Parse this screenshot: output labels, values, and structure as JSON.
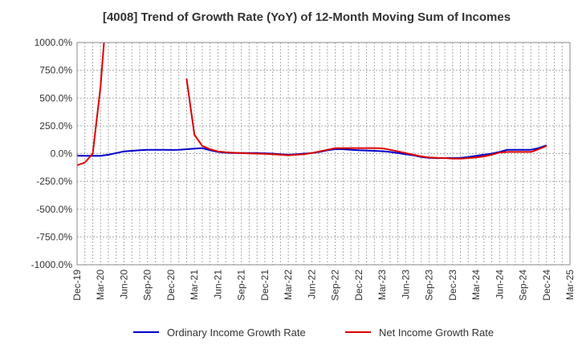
{
  "chart_data": {
    "type": "line",
    "title": "[4008]  Trend of Growth Rate (YoY) of 12-Month Moving Sum of Incomes",
    "xlabel": "",
    "ylabel": "",
    "ylim": [
      -1000,
      1000
    ],
    "y_ticks": [
      "1000.0%",
      "750.0%",
      "500.0%",
      "250.0%",
      "0.0%",
      "-250.0%",
      "-500.0%",
      "-750.0%",
      "-1000.0%"
    ],
    "y_tick_values": [
      1000,
      750,
      500,
      250,
      0,
      -250,
      -500,
      -750,
      -1000
    ],
    "x_tick_labels": [
      "Dec-19",
      "Mar-20",
      "Jun-20",
      "Sep-20",
      "Dec-20",
      "Mar-21",
      "Jun-21",
      "Sep-21",
      "Dec-21",
      "Mar-22",
      "Jun-22",
      "Sep-22",
      "Dec-22",
      "Mar-23",
      "Jun-23",
      "Sep-23",
      "Dec-23",
      "Mar-24",
      "Jun-24",
      "Sep-24",
      "Dec-24",
      "Mar-25"
    ],
    "x": [
      "Dec-19",
      "Jan-20",
      "Feb-20",
      "Mar-20",
      "Apr-20",
      "May-20",
      "Jun-20",
      "Jul-20",
      "Aug-20",
      "Sep-20",
      "Oct-20",
      "Nov-20",
      "Dec-20",
      "Jan-21",
      "Feb-21",
      "Mar-21",
      "Apr-21",
      "May-21",
      "Jun-21",
      "Jul-21",
      "Aug-21",
      "Sep-21",
      "Oct-21",
      "Nov-21",
      "Dec-21",
      "Jan-22",
      "Feb-22",
      "Mar-22",
      "Apr-22",
      "May-22",
      "Jun-22",
      "Jul-22",
      "Aug-22",
      "Sep-22",
      "Oct-22",
      "Nov-22",
      "Dec-22",
      "Jan-23",
      "Feb-23",
      "Mar-23",
      "Apr-23",
      "May-23",
      "Jun-23",
      "Jul-23",
      "Aug-23",
      "Sep-23",
      "Oct-23",
      "Nov-23",
      "Dec-23",
      "Jan-24",
      "Feb-24",
      "Mar-24",
      "Apr-24",
      "May-24",
      "Jun-24",
      "Jul-24",
      "Aug-24",
      "Sep-24",
      "Oct-24",
      "Nov-24",
      "Dec-24"
    ],
    "series": [
      {
        "name": "Ordinary Income Growth Rate",
        "color": "#0000cc",
        "values": [
          -18,
          -20,
          -20,
          -20,
          -10,
          5,
          20,
          25,
          30,
          35,
          35,
          35,
          33,
          35,
          40,
          45,
          50,
          30,
          15,
          8,
          5,
          5,
          5,
          5,
          3,
          0,
          -5,
          -10,
          -5,
          0,
          5,
          15,
          30,
          40,
          40,
          35,
          30,
          28,
          25,
          22,
          15,
          5,
          -5,
          -15,
          -30,
          -38,
          -40,
          -40,
          -40,
          -38,
          -30,
          -20,
          -10,
          0,
          15,
          35,
          35,
          35,
          35,
          50,
          75
        ]
      },
      {
        "name": "Net Income Growth Rate",
        "color": "#dd0000",
        "values": [
          -105,
          -80,
          0,
          600,
          1500,
          null,
          null,
          null,
          null,
          null,
          null,
          null,
          null,
          null,
          675,
          170,
          70,
          40,
          20,
          12,
          8,
          5,
          2,
          0,
          -2,
          -5,
          -10,
          -15,
          -10,
          -5,
          5,
          20,
          35,
          50,
          50,
          50,
          50,
          50,
          50,
          48,
          35,
          20,
          5,
          -10,
          -25,
          -35,
          -38,
          -40,
          -45,
          -45,
          -40,
          -35,
          -25,
          -10,
          10,
          15,
          15,
          15,
          15,
          40,
          70
        ]
      }
    ],
    "grid": true,
    "legend_position": "bottom"
  }
}
